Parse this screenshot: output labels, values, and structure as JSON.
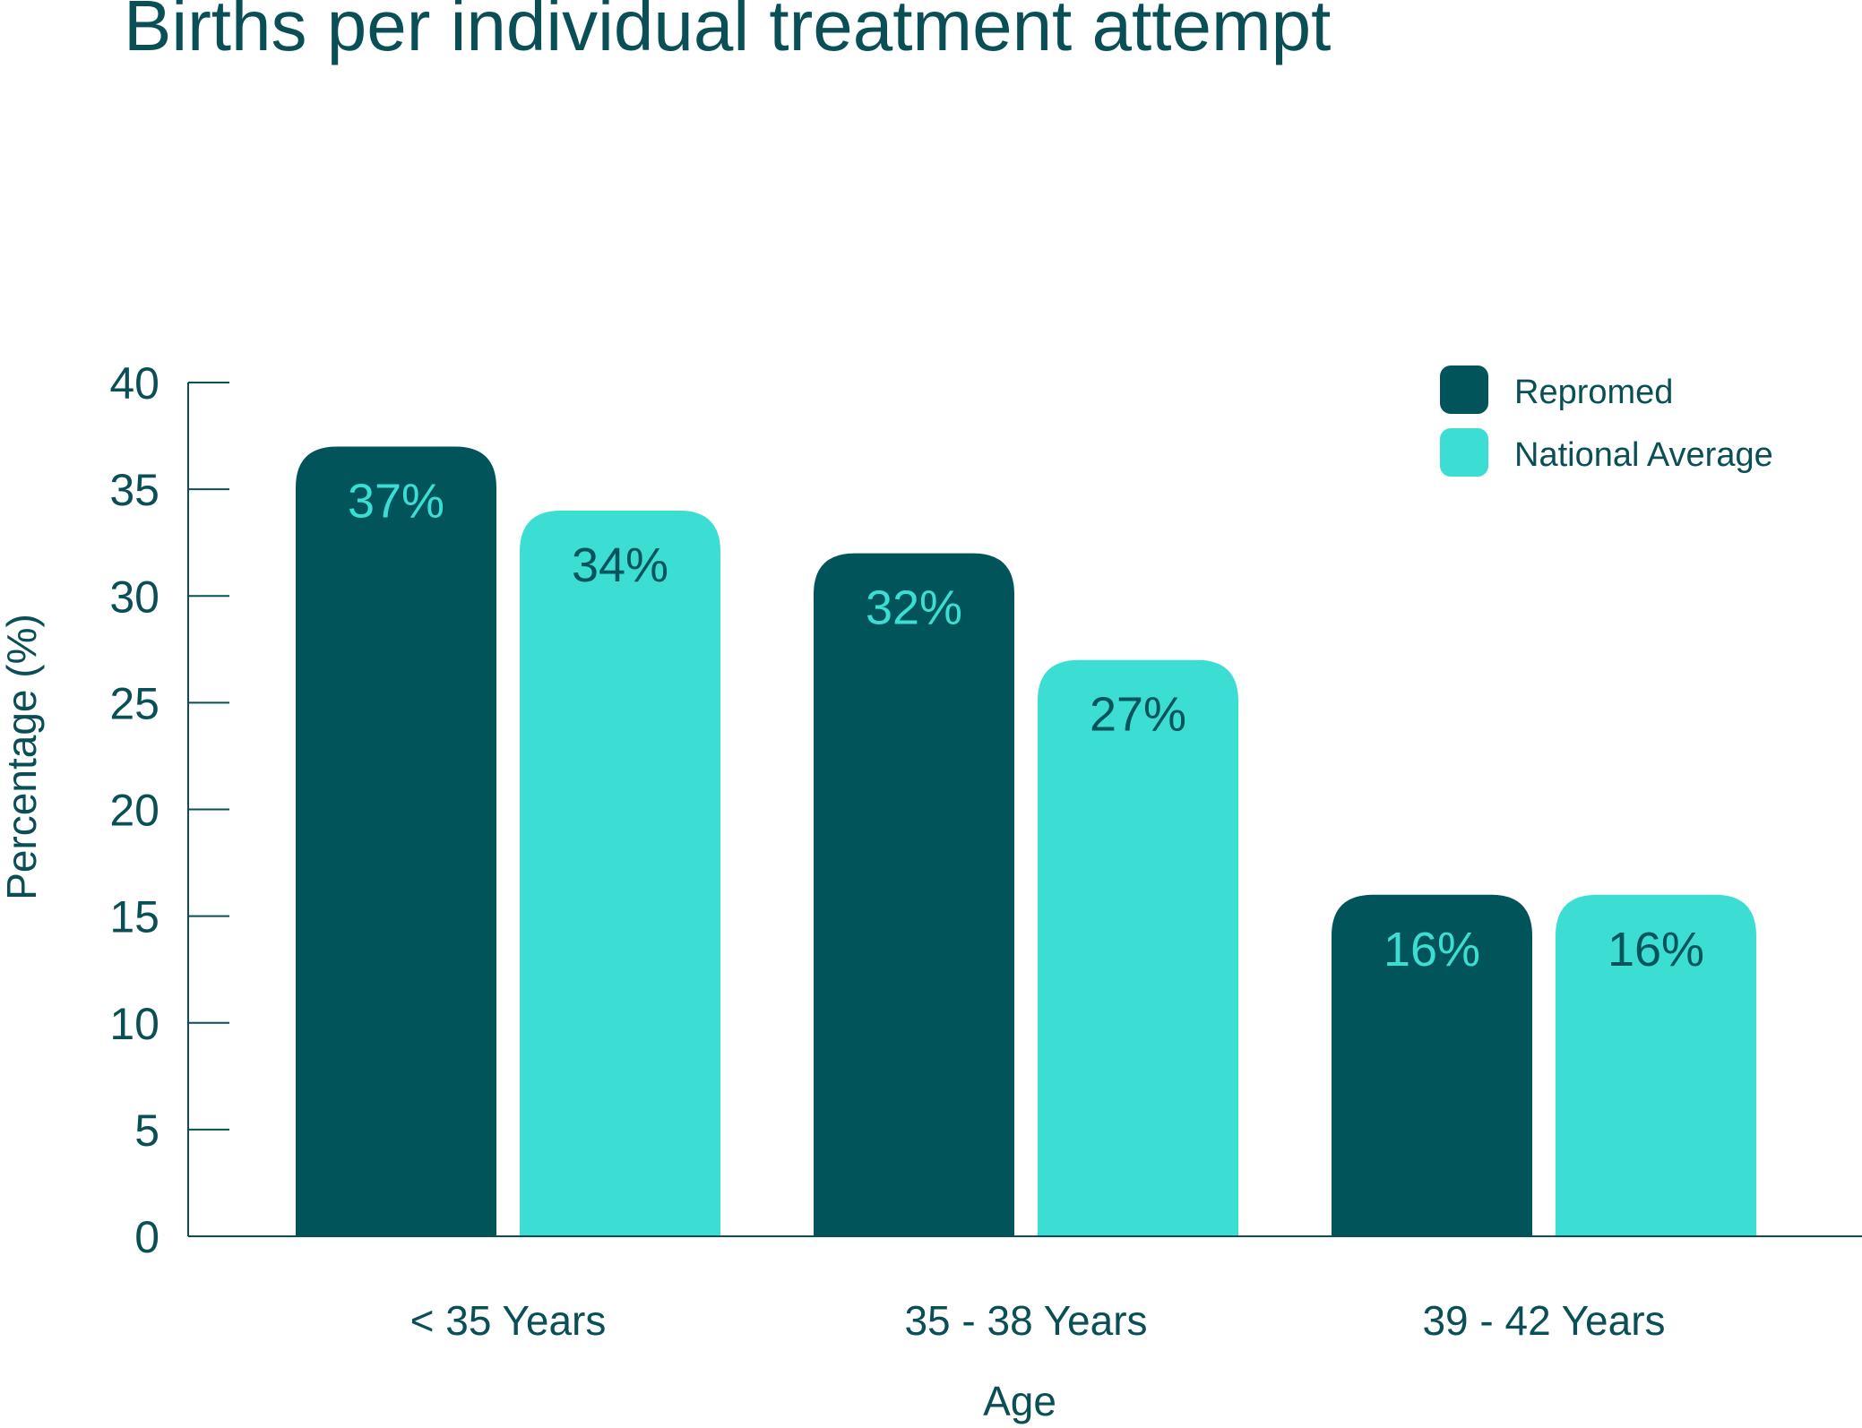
{
  "chart_data": {
    "type": "bar",
    "title": "Births per individual treatment attempt",
    "xlabel": "Age",
    "ylabel": "Percentage (%)",
    "categories": [
      "< 35 Years",
      "35 - 38 Years",
      "39 - 42 Years"
    ],
    "series": [
      {
        "name": "Repromed",
        "values": [
          37,
          32,
          16
        ],
        "labels": [
          "37%",
          "32%",
          "16%"
        ],
        "color": "#01545A",
        "label_color": "#3CDDD3"
      },
      {
        "name": "National Average",
        "values": [
          34,
          27,
          16
        ],
        "labels": [
          "34%",
          "27%",
          "16%"
        ],
        "color": "#3CDDD3",
        "label_color": "#01545A"
      }
    ],
    "ylim": [
      0,
      40
    ],
    "yticks": [
      0,
      5,
      10,
      15,
      20,
      25,
      30,
      35,
      40
    ],
    "legend": "top-right",
    "grid": false,
    "text_color": "#0A4F55"
  }
}
